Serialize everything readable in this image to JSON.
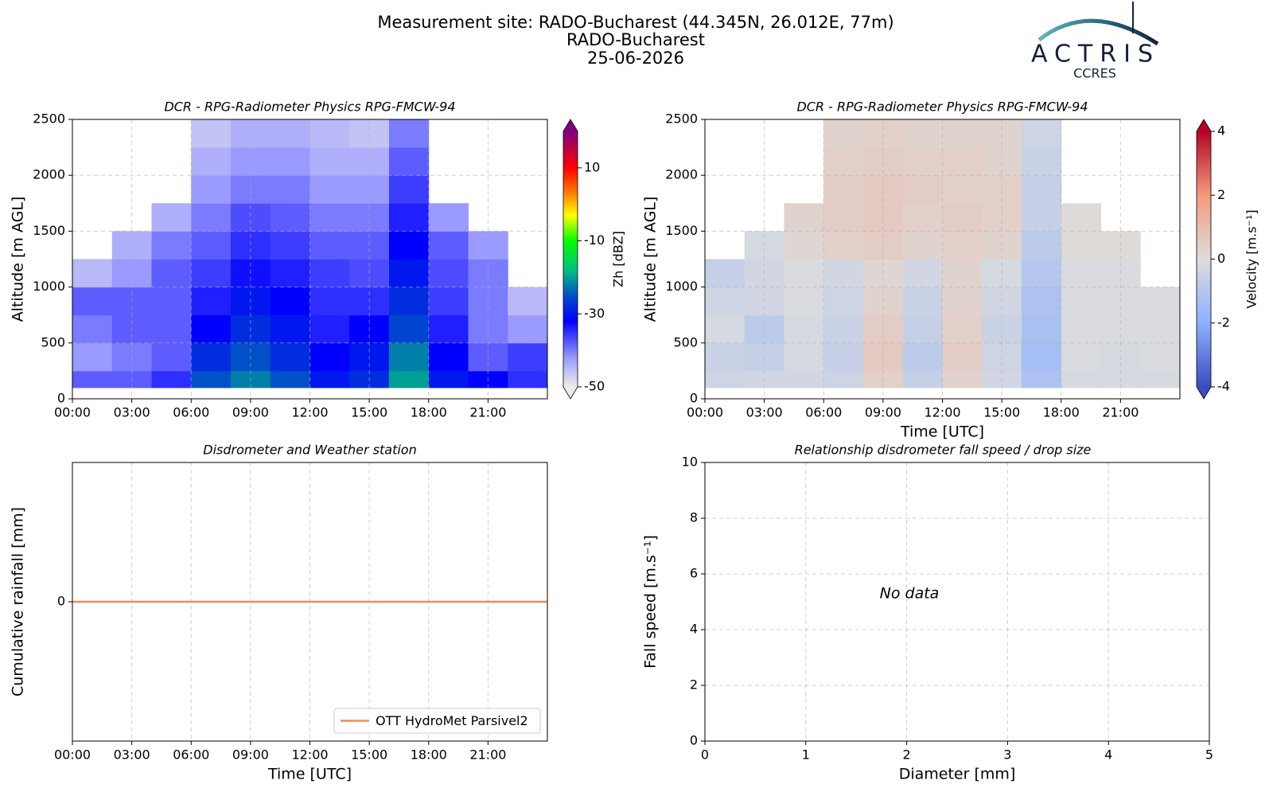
{
  "header": {
    "title": [
      "Measurement site: RADO-Bucharest (44.345N, 26.012E, 77m)",
      "RADO-Bucharest",
      "25-06-2026"
    ],
    "logo": "ACTRIS",
    "logo_sub": "CCRES"
  },
  "chart_data": [
    {
      "type": "heatmap",
      "title": "DCR - RPG-Radiometer Physics RPG-FMCW-94",
      "ylabel": "Altitude [m AGL]",
      "xlim": [
        0,
        24
      ],
      "xticks": [
        {
          "value": 0,
          "label": "00:00"
        },
        {
          "value": 3,
          "label": "03:00"
        },
        {
          "value": 6,
          "label": "06:00"
        },
        {
          "value": 9,
          "label": "09:00"
        },
        {
          "value": 12,
          "label": "12:00"
        },
        {
          "value": 15,
          "label": "15:00"
        },
        {
          "value": 18,
          "label": "18:00"
        },
        {
          "value": 21,
          "label": "21:00"
        }
      ],
      "ylim": [
        0,
        2500
      ],
      "yticks": [
        0,
        500,
        1000,
        1500,
        2000,
        2500
      ],
      "grid": true,
      "x_bins": [
        0,
        2,
        4,
        6,
        8,
        10,
        12,
        14,
        16,
        18,
        20,
        22,
        24
      ],
      "y_bins": [
        100,
        250,
        500,
        750,
        1000,
        1250,
        1500,
        1750,
        2000,
        2250,
        2500
      ],
      "z": [
        [
          -38,
          -38,
          -35,
          -25,
          -22,
          -25,
          -30,
          -28,
          -20,
          -30,
          -32,
          -35
        ],
        [
          -42,
          -40,
          -38,
          -28,
          -25,
          -28,
          -32,
          -30,
          -22,
          -32,
          -38,
          -36
        ],
        [
          -40,
          -38,
          -38,
          -32,
          -28,
          -30,
          -34,
          -32,
          -26,
          -34,
          -40,
          -42
        ],
        [
          -38,
          -38,
          -38,
          -34,
          -30,
          -32,
          -35,
          -35,
          -28,
          -36,
          -40,
          -45
        ],
        [
          -45,
          -42,
          -38,
          -36,
          -33,
          -34,
          -36,
          -37,
          -30,
          -37,
          -40,
          null
        ],
        [
          null,
          -44,
          -40,
          -38,
          -35,
          -36,
          -38,
          -38,
          -32,
          -38,
          -42,
          null
        ],
        [
          null,
          null,
          -44,
          -40,
          -37,
          -38,
          -40,
          -40,
          -34,
          -42,
          null,
          null
        ],
        [
          null,
          null,
          null,
          -42,
          -40,
          -40,
          -42,
          -42,
          -36,
          null,
          null,
          null
        ],
        [
          null,
          null,
          null,
          -44,
          -42,
          -42,
          -44,
          -44,
          -38,
          null,
          null,
          null
        ],
        [
          null,
          null,
          null,
          -46,
          -44,
          -44,
          -45,
          -46,
          -40,
          null,
          null,
          null
        ]
      ],
      "colormap": "reflectivity",
      "zlim": [
        -50,
        20
      ],
      "zticks": [
        -50,
        -30,
        -10,
        10
      ],
      "zlabel": "Zh [dBZ]",
      "colorbar_extend": "both"
    },
    {
      "type": "heatmap",
      "title": "DCR - RPG-Radiometer Physics RPG-FMCW-94",
      "ylabel": "Altitude [m AGL]",
      "xlabel": "Time [UTC]",
      "xlim": [
        0,
        24
      ],
      "xticks": [
        {
          "value": 0,
          "label": "00:00"
        },
        {
          "value": 3,
          "label": "03:00"
        },
        {
          "value": 6,
          "label": "06:00"
        },
        {
          "value": 9,
          "label": "09:00"
        },
        {
          "value": 12,
          "label": "12:00"
        },
        {
          "value": 15,
          "label": "15:00"
        },
        {
          "value": 18,
          "label": "18:00"
        },
        {
          "value": 21,
          "label": "21:00"
        }
      ],
      "ylim": [
        0,
        2500
      ],
      "yticks": [
        0,
        500,
        1000,
        1500,
        2000,
        2500
      ],
      "grid": true,
      "x_bins": [
        0,
        2,
        4,
        6,
        8,
        10,
        12,
        14,
        16,
        18,
        20,
        22,
        24
      ],
      "y_bins": [
        100,
        250,
        500,
        750,
        1000,
        1250,
        1500,
        1750,
        2000,
        2250,
        2500
      ],
      "z": [
        [
          -0.4,
          -0.3,
          -0.3,
          -0.4,
          0.4,
          -0.6,
          0.3,
          -0.3,
          -1.2,
          -0.2,
          -0.2,
          -0.2
        ],
        [
          -0.5,
          -0.6,
          -0.2,
          -0.6,
          0.6,
          -0.8,
          0.5,
          -0.4,
          -1.4,
          -0.1,
          -0.2,
          -0.1
        ],
        [
          -0.2,
          -0.8,
          -0.2,
          -0.5,
          0.5,
          -0.6,
          0.4,
          -0.5,
          -1.3,
          -0.1,
          -0.1,
          -0.1
        ],
        [
          -0.4,
          -0.3,
          -0.1,
          -0.4,
          0.3,
          -0.5,
          0.3,
          -0.3,
          -1.2,
          -0.1,
          -0.1,
          -0.1
        ],
        [
          -0.6,
          -0.3,
          -0.1,
          -0.3,
          0.2,
          -0.3,
          0.3,
          -0.2,
          -1.0,
          -0.1,
          -0.1,
          null
        ],
        [
          null,
          -0.2,
          0.2,
          0.4,
          0.5,
          0.3,
          0.4,
          0.3,
          -0.8,
          0.1,
          0.1,
          null
        ],
        [
          null,
          null,
          0.3,
          0.5,
          0.6,
          0.4,
          0.5,
          0.4,
          -0.6,
          0.1,
          null,
          null
        ],
        [
          null,
          null,
          null,
          0.5,
          0.6,
          0.5,
          0.4,
          0.4,
          -0.6,
          null,
          null,
          null
        ],
        [
          null,
          null,
          null,
          0.4,
          0.5,
          0.4,
          0.4,
          0.3,
          -0.5,
          null,
          null,
          null
        ],
        [
          null,
          null,
          null,
          0.3,
          0.4,
          0.3,
          0.3,
          0.3,
          -0.4,
          null,
          null,
          null
        ]
      ],
      "colormap": "coolwarm",
      "zlim": [
        -4,
        4
      ],
      "zticks": [
        -4,
        -2,
        0,
        2,
        4
      ],
      "zlabel": "Velocity [m.s⁻¹]",
      "colorbar_extend": "both"
    },
    {
      "type": "line",
      "title": "Disdrometer and Weather station",
      "ylabel": "Cumulative rainfall [mm]",
      "xlabel": "Time [UTC]",
      "xlim": [
        0,
        24
      ],
      "xticks": [
        {
          "value": 0,
          "label": "00:00"
        },
        {
          "value": 3,
          "label": "03:00"
        },
        {
          "value": 6,
          "label": "06:00"
        },
        {
          "value": 9,
          "label": "09:00"
        },
        {
          "value": 12,
          "label": "12:00"
        },
        {
          "value": 15,
          "label": "15:00"
        },
        {
          "value": 18,
          "label": "18:00"
        },
        {
          "value": 21,
          "label": "21:00"
        }
      ],
      "ylim": [
        -0.055,
        0.055
      ],
      "yticks": [
        0
      ],
      "grid": true,
      "legend": "lower right",
      "x": [
        0,
        24
      ],
      "series": [
        {
          "name": "OTT HydroMet Parsivel2",
          "color": "#f08a5d",
          "values": [
            0,
            0
          ]
        }
      ]
    },
    {
      "type": "scatter",
      "title": "Relationship disdrometer fall speed / drop size",
      "ylabel": "Fall speed [m.s⁻¹]",
      "xlabel": "Diameter [mm]",
      "xlim": [
        0,
        5
      ],
      "xticks": [
        0,
        1,
        2,
        3,
        4,
        5
      ],
      "ylim": [
        0,
        10
      ],
      "yticks": [
        0,
        2,
        4,
        6,
        8,
        10
      ],
      "grid": true,
      "annotation": "No data"
    }
  ]
}
